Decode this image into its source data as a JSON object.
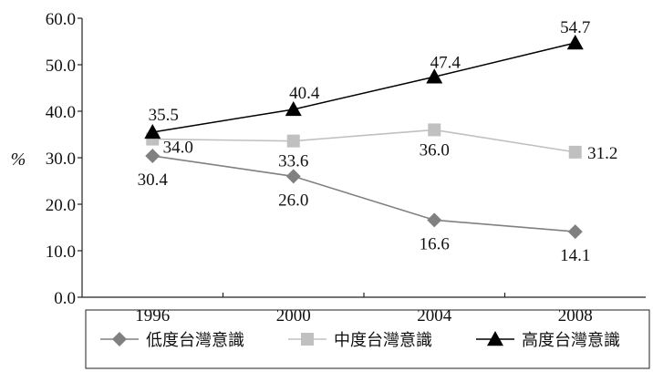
{
  "chart_data": {
    "type": "line",
    "x": [
      "1996",
      "2000",
      "2004",
      "2008"
    ],
    "ylabel": "%",
    "ylim": [
      0,
      60
    ],
    "yticks": [
      "0.0",
      "10.0",
      "20.0",
      "30.0",
      "40.0",
      "50.0",
      "60.0"
    ],
    "grid": false,
    "legend_position": "bottom",
    "series": [
      {
        "name": "低度台灣意識",
        "values": [
          30.4,
          26.0,
          16.6,
          14.1
        ],
        "labels": [
          "30.4",
          "26.0",
          "16.6",
          "14.1"
        ],
        "color": "#808080",
        "marker": "diamond"
      },
      {
        "name": "中度台灣意識",
        "values": [
          34.0,
          33.6,
          36.0,
          31.2
        ],
        "labels": [
          "34.0",
          "33.6",
          "36.0",
          "31.2"
        ],
        "color": "#c0c0c0",
        "marker": "square"
      },
      {
        "name": "高度台灣意識",
        "values": [
          35.5,
          40.4,
          47.4,
          54.7
        ],
        "labels": [
          "35.5",
          "40.4",
          "47.4",
          "54.7"
        ],
        "color": "#000000",
        "marker": "triangle"
      }
    ]
  }
}
